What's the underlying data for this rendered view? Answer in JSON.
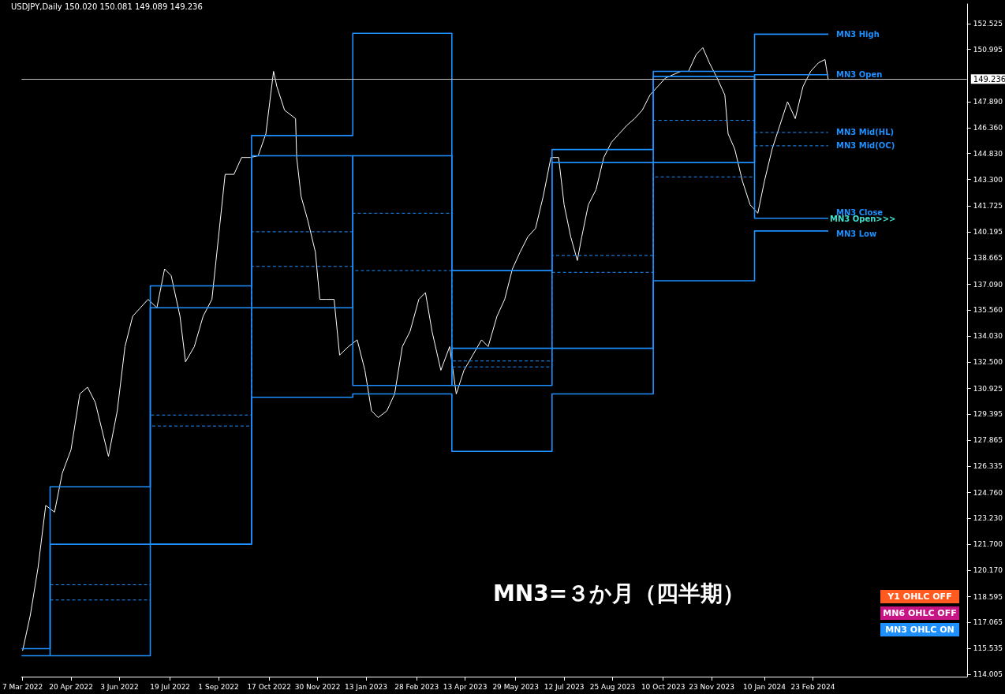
{
  "chart_data": {
    "type": "line",
    "title": "USDJPY,Daily 150.020 150.081 149.089 149.236",
    "xlim": [
      "2022-03-06",
      "2024-07-12"
    ],
    "xticks": [
      {
        "value": "2022-03-07",
        "label": "7 Mar 2022"
      },
      {
        "value": "2022-04-20",
        "label": "20 Apr 2022"
      },
      {
        "value": "2022-06-03",
        "label": "3 Jun 2022"
      },
      {
        "value": "2022-07-19",
        "label": "19 Jul 2022"
      },
      {
        "value": "2022-09-01",
        "label": "1 Sep 2022"
      },
      {
        "value": "2022-10-17",
        "label": "17 Oct 2022"
      },
      {
        "value": "2022-11-30",
        "label": "30 Nov 2022"
      },
      {
        "value": "2023-01-13",
        "label": "13 Jan 2023"
      },
      {
        "value": "2023-02-28",
        "label": "28 Feb 2023"
      },
      {
        "value": "2023-04-13",
        "label": "13 Apr 2023"
      },
      {
        "value": "2023-05-29",
        "label": "29 May 2023"
      },
      {
        "value": "2023-07-12",
        "label": "12 Jul 2023"
      },
      {
        "value": "2023-08-25",
        "label": "25 Aug 2023"
      },
      {
        "value": "2023-10-10",
        "label": "10 Oct 2023"
      },
      {
        "value": "2023-11-23",
        "label": "23 Nov 2023"
      },
      {
        "value": "2024-01-10",
        "label": "10 Jan 2024"
      },
      {
        "value": "2024-02-23",
        "label": "23 Feb 2024"
      }
    ],
    "ylim": [
      113.86,
      153.69
    ],
    "yticks": [
      114.005,
      115.535,
      117.065,
      118.595,
      {
        "value": 120.17,
        "label": "120.170"
      },
      {
        "value": 121.7,
        "label": "121.700"
      },
      {
        "value": 123.23,
        "label": "123.230"
      },
      {
        "value": 124.76,
        "label": "124.760"
      },
      126.335,
      127.865,
      129.395,
      130.925,
      {
        "value": 132.5,
        "label": "132.500"
      },
      {
        "value": 134.03,
        "label": "134.030"
      },
      {
        "value": 135.56,
        "label": "135.560"
      },
      {
        "value": 137.09,
        "label": "137.090"
      },
      138.665,
      140.195,
      141.725,
      {
        "value": 143.3,
        "label": "143.300"
      },
      {
        "value": 144.83,
        "label": "144.830"
      },
      {
        "value": 146.36,
        "label": "146.360"
      },
      {
        "value": 147.89,
        "label": "147.890"
      },
      150.995,
      152.525
    ],
    "grid": false,
    "legend": false,
    "marker": "none",
    "ref_lines": [
      {
        "axis": "y",
        "value": 149.236,
        "label": "149.236",
        "color": "#c0c0c0"
      }
    ],
    "annotations": [
      "MN3=３か月（四半期）",
      "Y1 OHLC OFF",
      "MN6 OHLC OFF",
      "MN3 OHLC ON",
      {
        "text": "MN3 Open>>>",
        "x": "2024-03-08",
        "y": 140.9
      }
    ],
    "series": [
      {
        "color": "#ffffff",
        "x": [
          "2022-03-07",
          "2022-03-14",
          "2022-03-21",
          "2022-03-28",
          "2022-04-05",
          "2022-04-12",
          "2022-04-20",
          "2022-04-28",
          "2022-05-05",
          "2022-05-12",
          "2022-05-24",
          "2022-06-01",
          "2022-06-08",
          "2022-06-15",
          "2022-06-22",
          "2022-06-29",
          "2022-07-07",
          "2022-07-14",
          "2022-07-20",
          "2022-07-28",
          "2022-08-02",
          "2022-08-10",
          "2022-08-18",
          "2022-08-26",
          "2022-09-01",
          "2022-09-07",
          "2022-09-15",
          "2022-09-22",
          "2022-09-30",
          "2022-10-07",
          "2022-10-14",
          "2022-10-21",
          "2022-10-24",
          "2022-10-31",
          "2022-11-10",
          "2022-11-11",
          "2022-11-15",
          "2022-11-21",
          "2022-11-28",
          "2022-12-02",
          "2022-12-08",
          "2022-12-15",
          "2022-12-20",
          "2022-12-28",
          "2023-01-05",
          "2023-01-12",
          "2023-01-18",
          "2023-01-24",
          "2023-02-01",
          "2023-02-08",
          "2023-02-15",
          "2023-02-22",
          "2023-03-02",
          "2023-03-08",
          "2023-03-14",
          "2023-03-22",
          "2023-03-30",
          "2023-04-05",
          "2023-04-12",
          "2023-04-20",
          "2023-04-28",
          "2023-05-04",
          "2023-05-12",
          "2023-05-19",
          "2023-05-26",
          "2023-06-02",
          "2023-06-09",
          "2023-06-16",
          "2023-06-23",
          "2023-06-30",
          "2023-07-07",
          "2023-07-12",
          "2023-07-18",
          "2023-07-24",
          "2023-07-28",
          "2023-08-03",
          "2023-08-10",
          "2023-08-17",
          "2023-08-24",
          "2023-08-31",
          "2023-09-07",
          "2023-09-14",
          "2023-09-21",
          "2023-09-28",
          "2023-10-05",
          "2023-10-12",
          "2023-10-19",
          "2023-10-26",
          "2023-11-02",
          "2023-11-09",
          "2023-11-15",
          "2023-11-21",
          "2023-11-28",
          "2023-12-05",
          "2023-12-08",
          "2023-12-14",
          "2023-12-21",
          "2023-12-28",
          "2024-01-04",
          "2024-01-10",
          "2024-01-17",
          "2024-01-24",
          "2024-01-31",
          "2024-02-07",
          "2024-02-14",
          "2024-02-21",
          "2024-02-28",
          "2024-03-05",
          "2024-03-08"
        ],
        "values": [
          115.4,
          117.5,
          120.3,
          124.0,
          123.6,
          125.9,
          127.3,
          130.6,
          131.0,
          130.1,
          126.9,
          129.6,
          133.4,
          135.2,
          135.7,
          136.2,
          135.7,
          138.0,
          137.6,
          135.2,
          132.5,
          133.4,
          135.2,
          136.2,
          139.9,
          143.6,
          143.6,
          144.6,
          144.6,
          144.7,
          146.0,
          149.7,
          148.8,
          147.4,
          146.9,
          144.6,
          142.3,
          140.9,
          139.0,
          136.2,
          136.2,
          136.2,
          132.9,
          133.4,
          133.8,
          132.0,
          129.6,
          129.2,
          129.6,
          130.6,
          133.4,
          134.3,
          136.2,
          136.6,
          134.3,
          132.0,
          133.4,
          130.6,
          132.0,
          132.9,
          133.8,
          133.4,
          135.2,
          136.2,
          138.0,
          139.0,
          139.9,
          140.4,
          142.3,
          144.6,
          144.6,
          141.8,
          139.9,
          138.5,
          139.9,
          141.8,
          142.7,
          144.6,
          145.5,
          146.0,
          146.5,
          146.9,
          147.4,
          148.3,
          148.8,
          149.3,
          149.5,
          149.7,
          149.7,
          150.7,
          151.1,
          150.2,
          149.3,
          148.3,
          146.0,
          145.1,
          143.2,
          141.8,
          141.3,
          143.2,
          145.1,
          146.5,
          147.9,
          146.9,
          148.8,
          149.7,
          150.2,
          150.4,
          149.2
        ]
      },
      {
        "type": "step",
        "name": "MN3 High",
        "color": "#1e90ff",
        "x": [
          "2022-03-06",
          "2022-04-01",
          "2022-07-01",
          "2022-10-01",
          "2023-01-01",
          "2023-04-01",
          "2023-07-01",
          "2023-10-01",
          "2024-01-01",
          "2024-03-08"
        ],
        "values": [
          115.52,
          125.1,
          137.0,
          145.9,
          151.95,
          137.9,
          145.07,
          149.7,
          151.9,
          151.9
        ]
      },
      {
        "type": "step",
        "name": "MN3 Open",
        "color": "#1e90ff",
        "x": [
          "2022-04-01",
          "2022-07-01",
          "2022-10-01",
          "2023-01-01",
          "2023-04-01",
          "2023-07-01",
          "2023-10-01",
          "2024-01-01",
          "2024-03-08"
        ],
        "values": [
          115.1,
          121.7,
          135.7,
          144.7,
          131.1,
          133.3,
          144.3,
          149.5,
          149.5
        ]
      },
      {
        "type": "step",
        "name": "MN3 Mid(HL)",
        "color": "#1e90ff",
        "line_style": "dashed",
        "x": [
          "2022-04-01",
          "2022-07-01",
          "2022-10-01",
          "2023-01-01",
          "2023-04-01",
          "2023-07-01",
          "2023-10-01",
          "2024-01-01",
          "2024-03-08"
        ],
        "values": [
          119.3,
          129.35,
          138.15,
          141.3,
          132.55,
          137.8,
          143.45,
          146.08,
          146.08
        ]
      },
      {
        "type": "step",
        "name": "MN3 Mid(OC)",
        "color": "#1e90ff",
        "line_style": "dashed",
        "x": [
          "2022-04-01",
          "2022-07-01",
          "2022-10-01",
          "2023-01-01",
          "2023-04-01",
          "2023-07-01",
          "2023-10-01",
          "2024-01-01",
          "2024-03-08"
        ],
        "values": [
          118.4,
          128.7,
          140.2,
          137.9,
          132.2,
          138.8,
          146.8,
          145.29,
          145.29
        ]
      },
      {
        "type": "step",
        "name": "MN3 Close",
        "color": "#1e90ff",
        "x": [
          "2022-03-06",
          "2022-04-01",
          "2022-07-01",
          "2022-10-01",
          "2023-01-01",
          "2023-04-01",
          "2023-07-01",
          "2023-10-01",
          "2024-01-01",
          "2024-03-08"
        ],
        "values": [
          115.1,
          121.7,
          135.7,
          144.7,
          131.1,
          133.3,
          144.3,
          149.4,
          141.0,
          141.0
        ]
      },
      {
        "type": "step",
        "name": "MN3 Low",
        "color": "#1e90ff",
        "x": [
          "2022-07-01",
          "2022-10-01",
          "2023-01-01",
          "2023-04-01",
          "2023-07-01",
          "2023-10-01",
          "2024-01-01",
          "2024-03-08"
        ],
        "values": [
          121.7,
          130.4,
          130.6,
          127.2,
          130.6,
          137.3,
          140.25,
          140.25
        ]
      }
    ]
  }
}
